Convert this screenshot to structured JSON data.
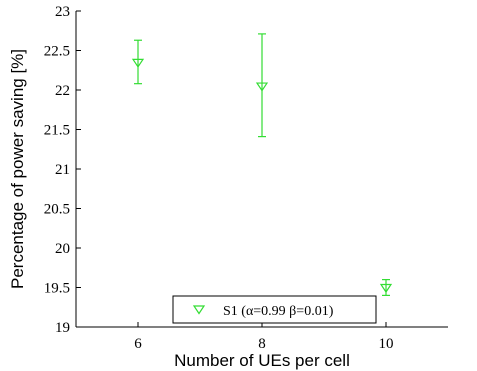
{
  "chart_data": {
    "type": "scatter",
    "xlabel": "Number of UEs per cell",
    "ylabel": "Percentage of power saving [%]",
    "xlim": [
      5,
      11
    ],
    "ylim": [
      19,
      23
    ],
    "x_ticks": [
      6,
      8,
      10
    ],
    "y_ticks": [
      19,
      19.5,
      20,
      20.5,
      21,
      21.5,
      22,
      22.5,
      23
    ],
    "grid": false,
    "legend_position": "bottom-center",
    "series": [
      {
        "name": "S1 (α=0.99 β=0.01)",
        "color": "#33dd33",
        "marker": "triangle-down",
        "points": [
          {
            "x": 6,
            "y": 22.35,
            "err_low": 22.08,
            "err_high": 22.63
          },
          {
            "x": 8,
            "y": 22.05,
            "err_low": 21.41,
            "err_high": 22.71
          },
          {
            "x": 10,
            "y": 19.5,
            "err_low": 19.4,
            "err_high": 19.6
          }
        ]
      }
    ]
  }
}
